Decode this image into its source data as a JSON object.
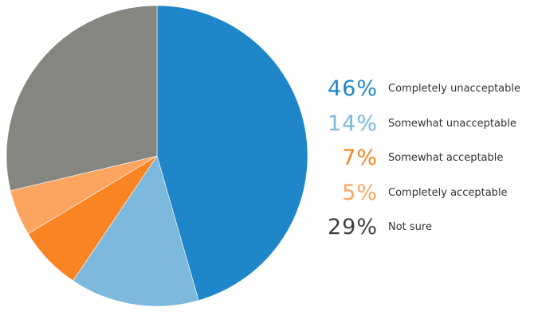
{
  "chart_data": {
    "type": "pie",
    "slices": [
      {
        "label": "Completely unacceptable",
        "value": 46,
        "display": "46%",
        "color": "#1f87c9",
        "text_color": "#1f87c9"
      },
      {
        "label": "Somewhat unacceptable",
        "value": 14,
        "display": "14%",
        "color": "#7cb9dc",
        "text_color": "#7cb9dc"
      },
      {
        "label": "Somewhat acceptable",
        "value": 7,
        "display": "7%",
        "color": "#f98424",
        "text_color": "#f98424"
      },
      {
        "label": "Completely acceptable",
        "value": 5,
        "display": "5%",
        "color": "#fba560",
        "text_color": "#fba560"
      },
      {
        "label": "Not sure",
        "value": 29,
        "display": "29%",
        "color": "#868681",
        "text_color": "#3f3f3f"
      }
    ],
    "start_angle_deg": 0,
    "direction": "clockwise"
  }
}
